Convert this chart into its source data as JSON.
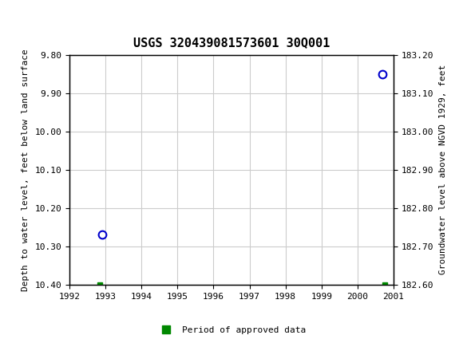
{
  "title": "USGS 320439081573601 30Q001",
  "header_color": "#006633",
  "points": [
    {
      "year": 1992.9,
      "depth": 10.27,
      "type": "circle"
    },
    {
      "year": 2000.7,
      "depth": 9.85,
      "type": "circle"
    },
    {
      "year": 1992.85,
      "depth": 10.4,
      "type": "square"
    },
    {
      "year": 2000.75,
      "depth": 10.4,
      "type": "square"
    }
  ],
  "xlim": [
    1992,
    2001
  ],
  "ylim_left": [
    10.4,
    9.8
  ],
  "ylim_right": [
    182.6,
    183.2
  ],
  "yticks_left": [
    9.8,
    9.9,
    10.0,
    10.1,
    10.2,
    10.3,
    10.4
  ],
  "yticks_right": [
    182.6,
    182.7,
    182.8,
    182.9,
    183.0,
    183.1,
    183.2
  ],
  "xticks": [
    1992,
    1993,
    1994,
    1995,
    1996,
    1997,
    1998,
    1999,
    2000,
    2001
  ],
  "ylabel_left": "Depth to water level, feet below land surface",
  "ylabel_right": "Groundwater level above NGVD 1929, feet",
  "legend_label": "Period of approved data",
  "circle_color": "#0000cc",
  "square_color": "#008800",
  "grid_color": "#cccccc",
  "background_color": "#ffffff",
  "font_family": "monospace"
}
